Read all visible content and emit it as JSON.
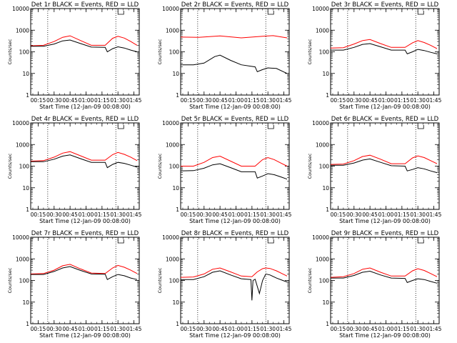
{
  "chart_data": [
    {
      "type": "line",
      "title": "Det 1r BLACK = Events, RED = LLD",
      "xlabel": "Start Time (12-Jan-09 00:08:00)",
      "ylabel": "Counts/sec",
      "y_scale": "log",
      "ylim": [
        1,
        10000
      ],
      "xlim_minutes": [
        8,
        110
      ],
      "x_tick_labels": [
        "00:15",
        "00:30",
        "00:45",
        "01:00",
        "01:15",
        "01:30",
        "01:45"
      ],
      "y_tick_labels": [
        "1",
        "10",
        "100",
        "1000",
        "10000"
      ],
      "vertical_markers_time": [
        "00:24",
        "01:28"
      ],
      "flag_bracket": true,
      "series": [
        {
          "color": "#000000",
          "x": [
            "00:08",
            "00:20",
            "00:30",
            "00:38",
            "00:45",
            "00:55",
            "01:05",
            "01:18",
            "01:20",
            "01:25",
            "01:30",
            "01:36",
            "01:42",
            "01:48"
          ],
          "values": [
            180,
            180,
            230,
            320,
            350,
            240,
            165,
            160,
            100,
            140,
            170,
            150,
            120,
            100
          ]
        },
        {
          "color": "#ff0000",
          "x": [
            "00:08",
            "00:20",
            "00:30",
            "00:38",
            "00:45",
            "00:55",
            "01:05",
            "01:18",
            "01:25",
            "01:30",
            "01:36",
            "01:42",
            "01:48"
          ],
          "values": [
            190,
            200,
            300,
            470,
            550,
            330,
            200,
            200,
            420,
            520,
            430,
            300,
            200
          ]
        }
      ]
    },
    {
      "type": "line",
      "title": "Det 2r BLACK = Events, RED = LLD",
      "xlabel": "Start Time (12-Jan-09 00:08:00)",
      "ylabel": "Counts/sec",
      "y_scale": "log",
      "ylim": [
        1,
        10000
      ],
      "xlim_minutes": [
        8,
        110
      ],
      "x_tick_labels": [
        "00:15",
        "00:30",
        "00:45",
        "01:00",
        "01:15",
        "01:30",
        "01:45"
      ],
      "y_tick_labels": [
        "1",
        "10",
        "100",
        "1000",
        "10000"
      ],
      "vertical_markers_time": [
        "00:24",
        "01:28"
      ],
      "flag_bracket": true,
      "series": [
        {
          "color": "#000000",
          "x": [
            "00:08",
            "00:20",
            "00:30",
            "00:40",
            "00:45",
            "00:55",
            "01:05",
            "01:18",
            "01:20",
            "01:25",
            "01:30",
            "01:38",
            "01:48"
          ],
          "values": [
            25,
            25,
            30,
            60,
            70,
            40,
            25,
            20,
            12,
            15,
            18,
            17,
            10
          ]
        },
        {
          "color": "#ff0000",
          "x": [
            "00:08",
            "00:25",
            "00:45",
            "01:05",
            "01:25",
            "01:35",
            "01:48"
          ],
          "values": [
            480,
            470,
            540,
            440,
            520,
            560,
            440
          ]
        }
      ]
    },
    {
      "type": "line",
      "title": "Det 3r BLACK = Events, RED = LLD",
      "xlabel": "Start Time (12-Jan-09 00:08:00)",
      "ylabel": "Counts/sec",
      "y_scale": "log",
      "ylim": [
        1,
        10000
      ],
      "xlim_minutes": [
        8,
        110
      ],
      "x_tick_labels": [
        "00:15",
        "00:30",
        "00:45",
        "01:00",
        "01:15",
        "01:30",
        "01:45"
      ],
      "y_tick_labels": [
        "1",
        "10",
        "100",
        "1000",
        "10000"
      ],
      "vertical_markers_time": [
        "00:24",
        "01:28"
      ],
      "flag_bracket": true,
      "series": [
        {
          "color": "#000000",
          "x": [
            "00:08",
            "00:20",
            "00:30",
            "00:38",
            "00:45",
            "00:55",
            "01:05",
            "01:18",
            "01:20",
            "01:25",
            "01:30",
            "01:36",
            "01:42",
            "01:48"
          ],
          "values": [
            120,
            120,
            160,
            220,
            240,
            170,
            120,
            120,
            80,
            100,
            130,
            115,
            95,
            80
          ]
        },
        {
          "color": "#ff0000",
          "x": [
            "00:08",
            "00:20",
            "00:30",
            "00:38",
            "00:45",
            "00:55",
            "01:05",
            "01:18",
            "01:25",
            "01:30",
            "01:36",
            "01:42",
            "01:48"
          ],
          "values": [
            150,
            155,
            230,
            330,
            370,
            240,
            160,
            160,
            260,
            330,
            270,
            200,
            140
          ]
        }
      ]
    },
    {
      "type": "line",
      "title": "Det 4r BLACK = Events, RED = LLD",
      "xlabel": "Start Time (12-Jan-09 00:08:00)",
      "ylabel": "Counts/sec",
      "y_scale": "log",
      "ylim": [
        1,
        10000
      ],
      "xlim_minutes": [
        8,
        110
      ],
      "x_tick_labels": [
        "00:15",
        "00:30",
        "00:45",
        "01:00",
        "01:15",
        "01:30",
        "01:45"
      ],
      "y_tick_labels": [
        "1",
        "10",
        "100",
        "1000",
        "10000"
      ],
      "vertical_markers_time": [
        "00:24",
        "01:28"
      ],
      "flag_bracket": true,
      "series": [
        {
          "color": "#000000",
          "x": [
            "00:08",
            "00:20",
            "00:30",
            "00:38",
            "00:45",
            "00:55",
            "01:05",
            "01:18",
            "01:20",
            "01:25",
            "01:30",
            "01:36",
            "01:42",
            "01:48"
          ],
          "values": [
            160,
            160,
            210,
            290,
            330,
            220,
            150,
            150,
            85,
            120,
            150,
            135,
            110,
            90
          ]
        },
        {
          "color": "#ff0000",
          "x": [
            "00:08",
            "00:20",
            "00:30",
            "00:38",
            "00:45",
            "00:55",
            "01:05",
            "01:18",
            "01:25",
            "01:30",
            "01:36",
            "01:42",
            "01:48"
          ],
          "values": [
            170,
            180,
            260,
            400,
            470,
            300,
            190,
            190,
            340,
            430,
            350,
            260,
            180
          ]
        }
      ]
    },
    {
      "type": "line",
      "title": "Det 5r BLACK = Events, RED = LLD",
      "xlabel": "Start Time (12-Jan-09 00:08:00)",
      "ylabel": "Counts/sec",
      "y_scale": "log",
      "ylim": [
        1,
        10000
      ],
      "xlim_minutes": [
        8,
        110
      ],
      "x_tick_labels": [
        "00:15",
        "00:30",
        "00:45",
        "01:00",
        "01:15",
        "01:30",
        "01:45"
      ],
      "y_tick_labels": [
        "1",
        "10",
        "100",
        "1000",
        "10000"
      ],
      "vertical_markers_time": [
        "00:24",
        "01:28"
      ],
      "flag_bracket": true,
      "series": [
        {
          "color": "#000000",
          "x": [
            "00:08",
            "00:20",
            "00:30",
            "00:38",
            "00:45",
            "00:55",
            "01:05",
            "01:18",
            "01:20",
            "01:25",
            "01:30",
            "01:36",
            "01:42",
            "01:48"
          ],
          "values": [
            60,
            62,
            80,
            115,
            130,
            85,
            55,
            55,
            28,
            35,
            45,
            40,
            32,
            25
          ]
        },
        {
          "color": "#ff0000",
          "x": [
            "00:08",
            "00:20",
            "00:30",
            "00:38",
            "00:45",
            "00:55",
            "01:05",
            "01:18",
            "01:25",
            "01:30",
            "01:36",
            "01:42",
            "01:48"
          ],
          "values": [
            100,
            100,
            150,
            250,
            290,
            170,
            100,
            100,
            200,
            250,
            200,
            140,
            100
          ]
        }
      ]
    },
    {
      "type": "line",
      "title": "Det 6r BLACK = Events, RED = LLD",
      "xlabel": "Start Time (12-Jan-09 00:08:00)",
      "ylabel": "Counts/sec",
      "y_scale": "log",
      "ylim": [
        1,
        10000
      ],
      "xlim_minutes": [
        8,
        110
      ],
      "x_tick_labels": [
        "00:15",
        "00:30",
        "00:45",
        "01:00",
        "01:15",
        "01:30",
        "01:45"
      ],
      "y_tick_labels": [
        "1",
        "10",
        "100",
        "1000",
        "10000"
      ],
      "vertical_markers_time": [
        "00:24",
        "01:28"
      ],
      "flag_bracket": true,
      "series": [
        {
          "color": "#000000",
          "x": [
            "00:08",
            "00:20",
            "00:30",
            "00:38",
            "00:45",
            "00:55",
            "01:05",
            "01:18",
            "01:20",
            "01:25",
            "01:30",
            "01:36",
            "01:42",
            "01:48"
          ],
          "values": [
            110,
            110,
            140,
            190,
            215,
            150,
            105,
            100,
            60,
            70,
            85,
            75,
            60,
            50
          ]
        },
        {
          "color": "#ff0000",
          "x": [
            "00:08",
            "00:20",
            "00:30",
            "00:38",
            "00:45",
            "00:55",
            "01:05",
            "01:18",
            "01:25",
            "01:30",
            "01:36",
            "01:42",
            "01:48"
          ],
          "values": [
            120,
            125,
            180,
            280,
            320,
            210,
            130,
            130,
            240,
            300,
            250,
            180,
            130
          ]
        }
      ]
    },
    {
      "type": "line",
      "title": "Det 7r BLACK = Events, RED = LLD",
      "xlabel": "Start Time (12-Jan-09 00:08:00)",
      "ylabel": "Counts/sec",
      "y_scale": "log",
      "ylim": [
        1,
        10000
      ],
      "xlim_minutes": [
        8,
        110
      ],
      "x_tick_labels": [
        "00:15",
        "00:30",
        "00:45",
        "01:00",
        "01:15",
        "01:30",
        "01:45"
      ],
      "y_tick_labels": [
        "1",
        "10",
        "100",
        "1000",
        "10000"
      ],
      "vertical_markers_time": [
        "00:24",
        "01:28"
      ],
      "flag_bracket": true,
      "series": [
        {
          "color": "#000000",
          "x": [
            "00:08",
            "00:20",
            "00:30",
            "00:38",
            "00:45",
            "00:55",
            "01:05",
            "01:18",
            "01:20",
            "01:25",
            "01:30",
            "01:36",
            "01:42",
            "01:48"
          ],
          "values": [
            190,
            190,
            260,
            380,
            440,
            290,
            200,
            195,
            110,
            150,
            190,
            165,
            130,
            110
          ]
        },
        {
          "color": "#ff0000",
          "x": [
            "00:08",
            "00:20",
            "00:30",
            "00:38",
            "00:45",
            "00:55",
            "01:05",
            "01:18",
            "01:25",
            "01:30",
            "01:36",
            "01:42",
            "01:48"
          ],
          "values": [
            200,
            210,
            300,
            480,
            560,
            340,
            220,
            210,
            380,
            500,
            410,
            300,
            210
          ]
        }
      ]
    },
    {
      "type": "line",
      "title": "Det 8r BLACK = Events, RED = LLD",
      "xlabel": "Start Time (12-Jan-09 00:08:00)",
      "ylabel": "Counts/sec",
      "y_scale": "log",
      "ylim": [
        1,
        10000
      ],
      "xlim_minutes": [
        8,
        110
      ],
      "x_tick_labels": [
        "00:15",
        "00:30",
        "00:45",
        "01:00",
        "01:15",
        "01:30",
        "01:45"
      ],
      "y_tick_labels": [
        "1",
        "10",
        "100",
        "1000",
        "10000"
      ],
      "vertical_markers_time": [
        "00:24",
        "01:28"
      ],
      "flag_bracket": true,
      "series": [
        {
          "color": "#000000",
          "x": [
            "00:08",
            "00:20",
            "00:30",
            "00:38",
            "00:45",
            "00:55",
            "01:05",
            "01:14",
            "01:15",
            "01:16",
            "01:18",
            "01:22",
            "01:25",
            "01:28",
            "01:32",
            "01:38",
            "01:44",
            "01:48"
          ],
          "values": [
            110,
            110,
            150,
            240,
            280,
            180,
            120,
            110,
            12,
            100,
            115,
            25,
            100,
            200,
            180,
            130,
            100,
            85
          ]
        },
        {
          "color": "#ff0000",
          "x": [
            "00:08",
            "00:20",
            "00:30",
            "00:38",
            "00:45",
            "00:55",
            "01:05",
            "01:15",
            "01:20",
            "01:25",
            "01:28",
            "01:32",
            "01:38",
            "01:44",
            "01:48"
          ],
          "values": [
            140,
            145,
            200,
            330,
            380,
            250,
            160,
            150,
            250,
            350,
            380,
            360,
            280,
            200,
            160
          ]
        }
      ]
    },
    {
      "type": "line",
      "title": "Det 9r BLACK = Events, RED = LLD",
      "xlabel": "Start Time (12-Jan-09 00:08:00)",
      "ylabel": "Counts/sec",
      "y_scale": "log",
      "ylim": [
        1,
        10000
      ],
      "xlim_minutes": [
        8,
        110
      ],
      "x_tick_labels": [
        "00:15",
        "00:30",
        "00:45",
        "01:00",
        "01:15",
        "01:30",
        "01:45"
      ],
      "y_tick_labels": [
        "1",
        "10",
        "100",
        "1000",
        "10000"
      ],
      "vertical_markers_time": [
        "00:24",
        "01:28"
      ],
      "flag_bracket": true,
      "series": [
        {
          "color": "#000000",
          "x": [
            "00:08",
            "00:20",
            "00:30",
            "00:38",
            "00:45",
            "00:55",
            "01:05",
            "01:18",
            "01:20",
            "01:25",
            "01:30",
            "01:36",
            "01:42",
            "01:48"
          ],
          "values": [
            130,
            130,
            170,
            240,
            270,
            180,
            130,
            125,
            80,
            100,
            120,
            110,
            90,
            75
          ]
        },
        {
          "color": "#ff0000",
          "x": [
            "00:08",
            "00:20",
            "00:30",
            "00:38",
            "00:45",
            "00:55",
            "01:05",
            "01:18",
            "01:25",
            "01:30",
            "01:36",
            "01:42",
            "01:48"
          ],
          "values": [
            140,
            150,
            210,
            330,
            380,
            240,
            160,
            160,
            280,
            350,
            290,
            210,
            150
          ]
        }
      ]
    }
  ]
}
